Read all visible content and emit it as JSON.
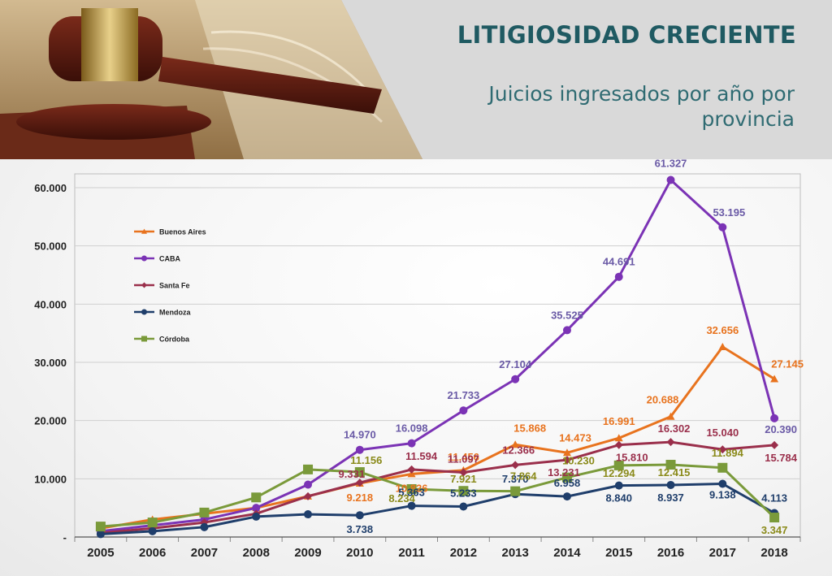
{
  "header": {
    "title": "LITIGIOSIDAD CRECIENTE",
    "subtitle": "Juicios ingresados por año por provincia"
  },
  "chart_data": {
    "type": "line",
    "title": "",
    "xlabel": "",
    "ylabel": "",
    "ylim": [
      0,
      60000
    ],
    "y_ticks": [
      0,
      10000,
      20000,
      30000,
      40000,
      50000,
      60000
    ],
    "y_tick_labels": [
      "-",
      "10.000",
      "20.000",
      "30.000",
      "40.000",
      "50.000",
      "60.000"
    ],
    "grid": "horizontal",
    "legend_position": "top-left",
    "x": [
      "2005",
      "2006",
      "2007",
      "2008",
      "2009",
      "2010",
      "2011",
      "2012",
      "2013",
      "2014",
      "2015",
      "2016",
      "2017",
      "2018"
    ],
    "series": [
      {
        "name": "Buenos Aires",
        "color": "#e8731e",
        "marker": "triangle",
        "values": [
          1500,
          3000,
          4000,
          5000,
          7000,
          9218,
          10826,
          11456,
          15868,
          14473,
          16991,
          20688,
          32656,
          27145
        ],
        "labels": [
          null,
          null,
          null,
          null,
          null,
          "9.218",
          "10.826",
          "11.456",
          "15.868",
          "14.473",
          "16.991",
          "20.688",
          "32.656",
          "27.145"
        ]
      },
      {
        "name": "CABA",
        "color": "#7b33b5",
        "marker": "circle",
        "values": [
          1000,
          2000,
          3000,
          5000,
          9000,
          14970,
          16098,
          21733,
          27104,
          35525,
          44691,
          61327,
          53195,
          20390
        ],
        "labels": [
          null,
          null,
          null,
          null,
          null,
          "14.970",
          "16.098",
          "21.733",
          "27.104",
          "35.525",
          "44.691",
          "61.327",
          "53.195",
          "20.390"
        ]
      },
      {
        "name": "Santa Fe",
        "color": "#9a2f4b",
        "marker": "diamond",
        "values": [
          700,
          1500,
          2500,
          4000,
          7000,
          9331,
          11594,
          11097,
          12366,
          13231,
          15810,
          16302,
          15040,
          15784
        ],
        "labels": [
          null,
          null,
          null,
          null,
          null,
          "9.331",
          "11.594",
          "11.097",
          "12.366",
          "13.231",
          "15.810",
          "16.302",
          "15.040",
          "15.784"
        ]
      },
      {
        "name": "Mendoza",
        "color": "#1f3e6b",
        "marker": "circle",
        "values": [
          500,
          1000,
          1700,
          3500,
          3900,
          3738,
          5363,
          5233,
          7370,
          6958,
          8840,
          8937,
          9138,
          4113
        ],
        "labels": [
          null,
          null,
          null,
          null,
          null,
          "3.738",
          "5.363",
          "5.233",
          "7.370",
          "6.958",
          "8.840",
          "8.937",
          "9.138",
          "4.113"
        ]
      },
      {
        "name": "Córdoba",
        "color": "#7a9a3a",
        "marker": "square",
        "values": [
          1800,
          2500,
          4200,
          6800,
          11600,
          11156,
          8234,
          7921,
          7864,
          10230,
          12294,
          12415,
          11894,
          3347
        ],
        "labels": [
          null,
          null,
          null,
          null,
          null,
          "11.156",
          "8.234",
          "7.921",
          "7.864",
          "10.230",
          "12.294",
          "12.415",
          "11.894",
          "3.347"
        ]
      }
    ],
    "label_colors": {
      "Buenos Aires": "#e8731e",
      "CABA": "#6a5aa6",
      "Santa Fe": "#9a2f4b",
      "Mendoza": "#1f3e6b",
      "Córdoba": "#8a8a1a"
    }
  }
}
